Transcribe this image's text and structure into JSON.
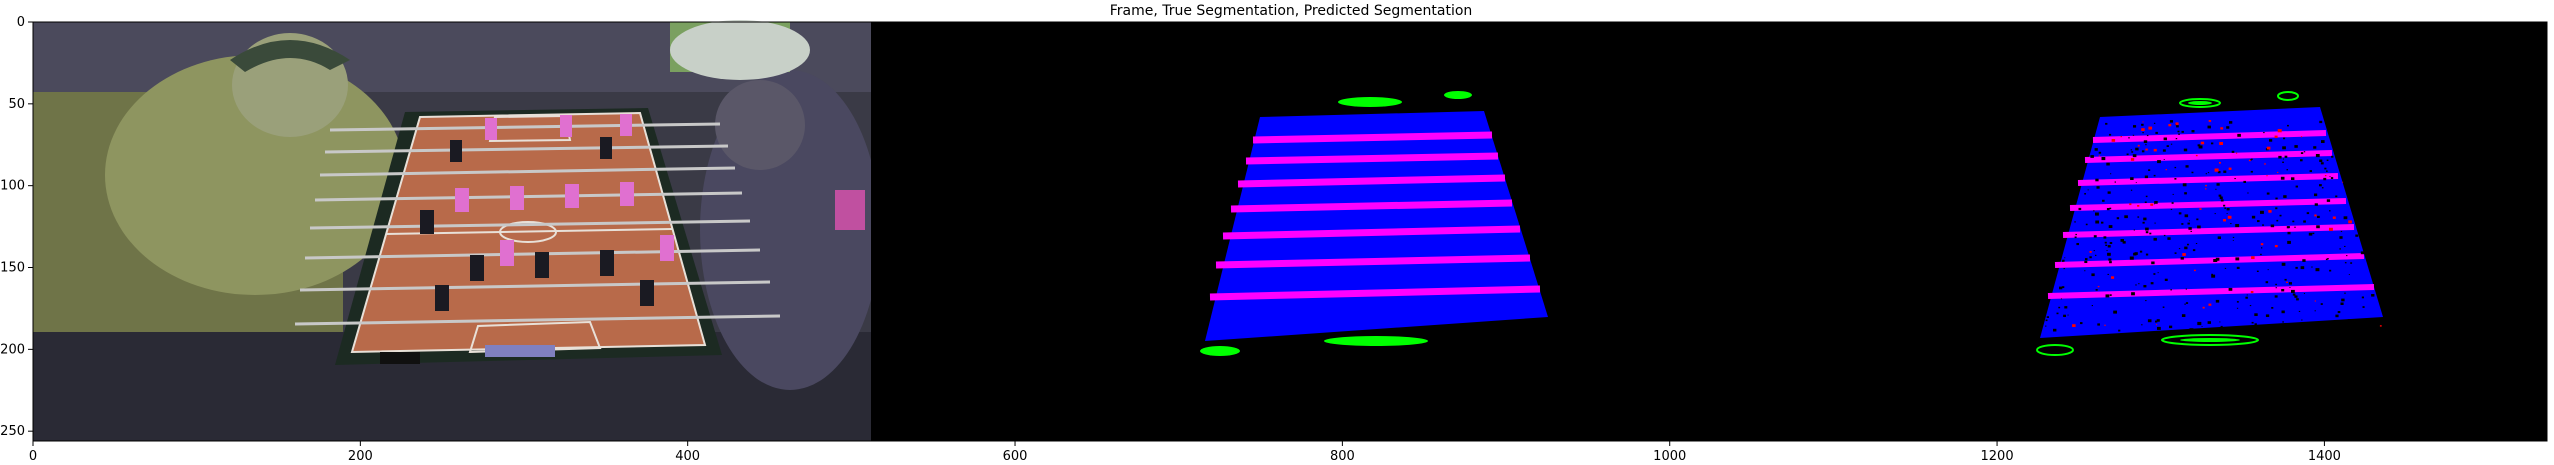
{
  "chart_data": {
    "type": "image",
    "title": "Frame, True Segmentation, Predicted Segmentation",
    "xlabel": "",
    "ylabel": "",
    "xlim": [
      0,
      1536
    ],
    "ylim": [
      256,
      0
    ],
    "x_ticks": [
      0,
      200,
      400,
      600,
      800,
      1000,
      1200,
      1400
    ],
    "y_ticks": [
      0,
      50,
      100,
      150,
      200,
      250
    ],
    "panels": [
      {
        "name": "Frame",
        "x_range": [
          0,
          512
        ],
        "content": "foosball table video frame"
      },
      {
        "name": "True Segmentation",
        "x_range": [
          512,
          1024
        ],
        "content": "mask: table (blue), rods (magenta), goals (green)"
      },
      {
        "name": "Predicted Segmentation",
        "x_range": [
          1024,
          1536
        ],
        "content": "mask: table (blue), rods (magenta), goals (green), noise (black/red)"
      }
    ],
    "mask_colors": {
      "background": "#000000",
      "table": "#0000ff",
      "rods": "#ff00ff",
      "goals": "#00ff00",
      "error": "#ff0000"
    }
  }
}
